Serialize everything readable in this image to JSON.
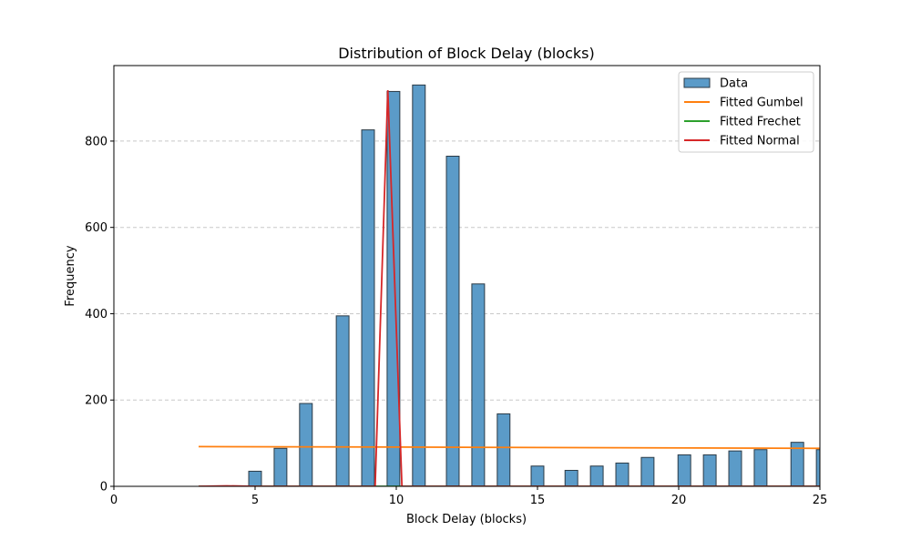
{
  "chart_data": {
    "type": "bar",
    "title": "Distribution of Block Delay (blocks)",
    "xlabel": "Block Delay (blocks)",
    "ylabel": "Frequency",
    "xlim": [
      0,
      25
    ],
    "ylim": [
      0,
      975
    ],
    "xticks": [
      0,
      5,
      10,
      15,
      20,
      25
    ],
    "yticks": [
      0,
      200,
      400,
      600,
      800
    ],
    "grid": "y dashed",
    "legend_position": "top-right",
    "bar_width": 0.45,
    "bars": [
      {
        "x": 5.0,
        "value": 35
      },
      {
        "x": 5.9,
        "value": 88
      },
      {
        "x": 6.8,
        "value": 192
      },
      {
        "x": 8.1,
        "value": 395
      },
      {
        "x": 9.0,
        "value": 826
      },
      {
        "x": 9.9,
        "value": 915
      },
      {
        "x": 10.8,
        "value": 930
      },
      {
        "x": 12.0,
        "value": 765
      },
      {
        "x": 12.9,
        "value": 469
      },
      {
        "x": 13.8,
        "value": 168
      },
      {
        "x": 15.0,
        "value": 47
      },
      {
        "x": 16.2,
        "value": 37
      },
      {
        "x": 17.1,
        "value": 47
      },
      {
        "x": 18.0,
        "value": 54
      },
      {
        "x": 18.9,
        "value": 67
      },
      {
        "x": 20.2,
        "value": 73
      },
      {
        "x": 21.1,
        "value": 73
      },
      {
        "x": 22.0,
        "value": 82
      },
      {
        "x": 22.9,
        "value": 85
      },
      {
        "x": 24.2,
        "value": 102
      },
      {
        "x": 25.1,
        "value": 85
      }
    ],
    "series": [
      {
        "name": "Data",
        "kind": "bar",
        "color": "#5b9bc8"
      },
      {
        "name": "Fitted Gumbel",
        "kind": "line",
        "color": "#ff7f0e",
        "x": [
          3,
          10,
          25
        ],
        "y": [
          92,
          91,
          88
        ]
      },
      {
        "name": "Fitted Frechet",
        "kind": "line",
        "color": "#2ca02c",
        "x": [
          3,
          25
        ],
        "y": [
          0,
          0
        ]
      },
      {
        "name": "Fitted Normal",
        "kind": "line",
        "color": "#d62728",
        "x": [
          3,
          4,
          5,
          9.25,
          9.7,
          10.2,
          11,
          25
        ],
        "y": [
          0,
          1,
          0,
          0,
          918,
          0,
          0,
          0
        ]
      }
    ],
    "colors": {
      "bar_fill": "#5b9bc8",
      "bar_edge": "#2b3a45",
      "grid": "#c8c8c8"
    }
  }
}
